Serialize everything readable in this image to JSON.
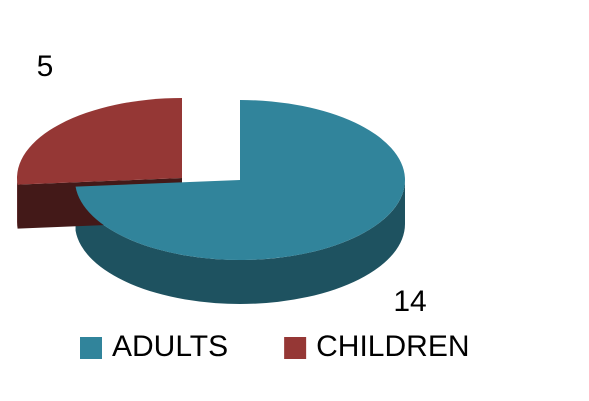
{
  "chart_data": {
    "type": "pie3d",
    "categories": [
      "ADULTS",
      "CHILDREN"
    ],
    "values": [
      14,
      5
    ],
    "colors": [
      "#31849b",
      "#953735"
    ],
    "legend": "bottom"
  }
}
